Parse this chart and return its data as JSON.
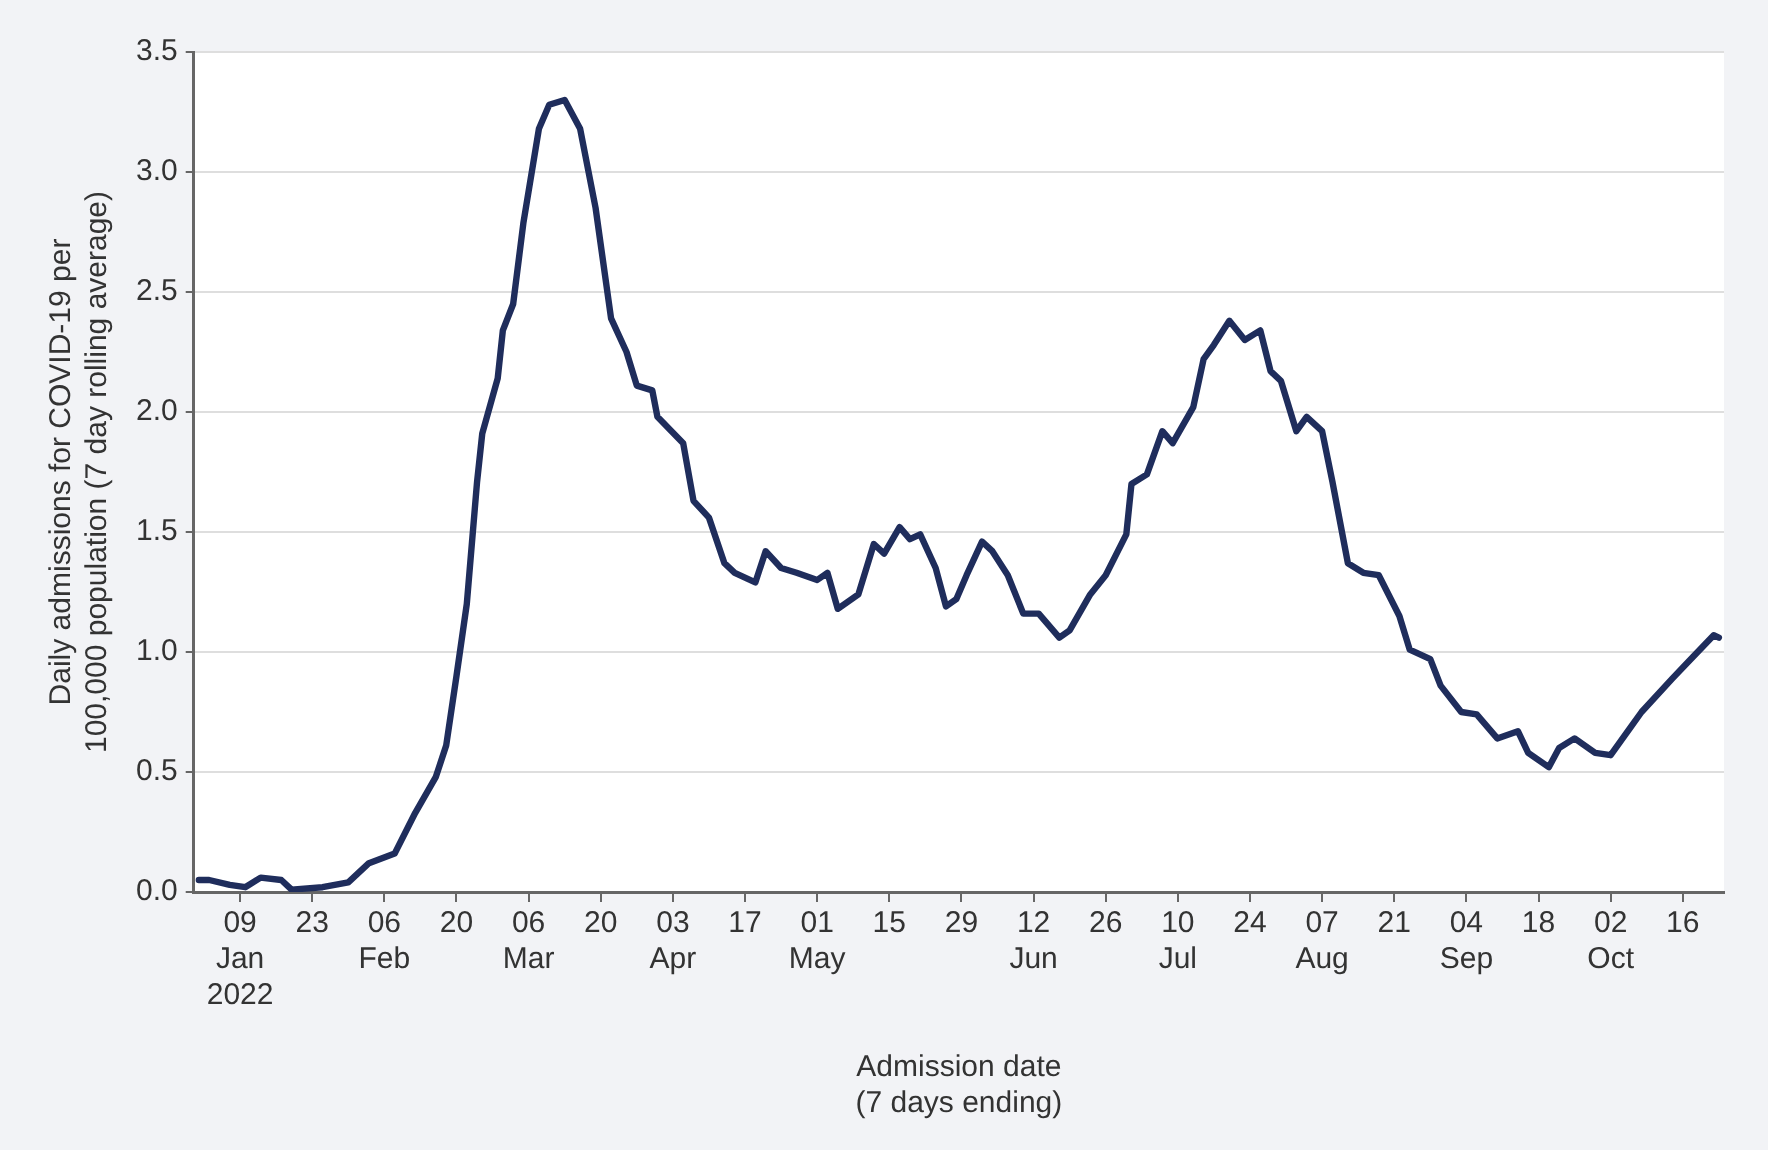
{
  "chart_data": {
    "type": "line",
    "xlabel": "Admission date\n(7 days ending)",
    "ylabel": "Daily admissions for COVID-19 per\n100,000 population (7 day rolling average)",
    "xlim": [
      "2021-12-31",
      "2022-10-24"
    ],
    "xticks": [
      {
        "value": "2022-01-09",
        "label": "09\nJan\n2022"
      },
      {
        "value": "2022-01-23",
        "label": "23"
      },
      {
        "value": "2022-02-06",
        "label": "06\nFeb"
      },
      {
        "value": "2022-02-20",
        "label": "20"
      },
      {
        "value": "2022-03-06",
        "label": "06\nMar"
      },
      {
        "value": "2022-03-20",
        "label": "20"
      },
      {
        "value": "2022-04-03",
        "label": "03\nApr"
      },
      {
        "value": "2022-04-17",
        "label": "17"
      },
      {
        "value": "2022-05-01",
        "label": "01\nMay"
      },
      {
        "value": "2022-05-15",
        "label": "15"
      },
      {
        "value": "2022-05-29",
        "label": "29"
      },
      {
        "value": "2022-06-12",
        "label": "12\nJun"
      },
      {
        "value": "2022-06-26",
        "label": "26"
      },
      {
        "value": "2022-07-10",
        "label": "10\nJul"
      },
      {
        "value": "2022-07-24",
        "label": "24"
      },
      {
        "value": "2022-08-07",
        "label": "07\nAug"
      },
      {
        "value": "2022-08-21",
        "label": "21"
      },
      {
        "value": "2022-09-04",
        "label": "04\nSep"
      },
      {
        "value": "2022-09-18",
        "label": "18"
      },
      {
        "value": "2022-10-02",
        "label": "02\nOct"
      },
      {
        "value": "2022-10-16",
        "label": "16"
      }
    ],
    "ylim": [
      0,
      3.5
    ],
    "yticks": [
      {
        "value": 0,
        "label": "0.0"
      },
      {
        "value": 0.5,
        "label": "0.5"
      },
      {
        "value": 1,
        "label": "1.0"
      },
      {
        "value": 1.5,
        "label": "1.5"
      },
      {
        "value": 2,
        "label": "2.0"
      },
      {
        "value": 2.5,
        "label": "2.5"
      },
      {
        "value": 3,
        "label": "3.0"
      },
      {
        "value": 3.5,
        "label": "3.5"
      }
    ],
    "grid": "y",
    "marker": "none",
    "line_style": "solid",
    "series": [
      {
        "color": "#1f2d5c",
        "x": [
          "2022-01-01",
          "2022-01-03",
          "2022-01-07",
          "2022-01-10",
          "2022-01-13",
          "2022-01-17",
          "2022-01-19",
          "2022-01-25",
          "2022-01-30",
          "2022-02-03",
          "2022-02-08",
          "2022-02-12",
          "2022-02-16",
          "2022-02-18",
          "2022-02-20",
          "2022-02-22",
          "2022-02-24",
          "2022-02-25",
          "2022-02-28",
          "2022-03-01",
          "2022-03-03",
          "2022-03-05",
          "2022-03-08",
          "2022-03-10",
          "2022-03-13",
          "2022-03-16",
          "2022-03-19",
          "2022-03-22",
          "2022-03-25",
          "2022-03-27",
          "2022-03-30",
          "2022-03-31",
          "2022-04-05",
          "2022-04-07",
          "2022-04-10",
          "2022-04-13",
          "2022-04-15",
          "2022-04-19",
          "2022-04-21",
          "2022-04-24",
          "2022-04-27",
          "2022-05-01",
          "2022-05-03",
          "2022-05-05",
          "2022-05-09",
          "2022-05-12",
          "2022-05-14",
          "2022-05-17",
          "2022-05-19",
          "2022-05-21",
          "2022-05-24",
          "2022-05-26",
          "2022-05-28",
          "2022-05-30",
          "2022-06-02",
          "2022-06-04",
          "2022-06-07",
          "2022-06-10",
          "2022-06-13",
          "2022-06-17",
          "2022-06-19",
          "2022-06-23",
          "2022-06-26",
          "2022-06-30",
          "2022-07-01",
          "2022-07-04",
          "2022-07-07",
          "2022-07-09",
          "2022-07-13",
          "2022-07-15",
          "2022-07-17",
          "2022-07-20",
          "2022-07-23",
          "2022-07-26",
          "2022-07-28",
          "2022-07-30",
          "2022-08-02",
          "2022-08-04",
          "2022-08-07",
          "2022-08-09",
          "2022-08-12",
          "2022-08-15",
          "2022-08-18",
          "2022-08-22",
          "2022-08-24",
          "2022-08-28",
          "2022-08-30",
          "2022-09-03",
          "2022-09-06",
          "2022-09-10",
          "2022-09-14",
          "2022-09-16",
          "2022-09-20",
          "2022-09-22",
          "2022-09-25",
          "2022-09-29",
          "2022-10-02",
          "2022-10-06",
          "2022-10-08",
          "2022-10-14",
          "2022-10-18",
          "2022-10-22",
          "2022-10-23"
        ],
        "values": [
          0.05,
          0.05,
          0.03,
          0.02,
          0.06,
          0.05,
          0.01,
          0.02,
          0.04,
          0.12,
          0.16,
          0.33,
          0.48,
          0.61,
          0.9,
          1.2,
          1.71,
          1.91,
          2.14,
          2.34,
          2.45,
          2.79,
          3.18,
          3.28,
          3.3,
          3.18,
          2.85,
          2.39,
          2.25,
          2.11,
          2.09,
          1.98,
          1.87,
          1.63,
          1.56,
          1.37,
          1.33,
          1.29,
          1.42,
          1.35,
          1.33,
          1.3,
          1.33,
          1.18,
          1.24,
          1.45,
          1.41,
          1.52,
          1.47,
          1.49,
          1.35,
          1.19,
          1.22,
          1.32,
          1.46,
          1.42,
          1.32,
          1.16,
          1.16,
          1.06,
          1.09,
          1.24,
          1.32,
          1.49,
          1.7,
          1.74,
          1.92,
          1.87,
          2.02,
          2.22,
          2.28,
          2.38,
          2.3,
          2.34,
          2.17,
          2.13,
          1.92,
          1.98,
          1.92,
          1.71,
          1.37,
          1.33,
          1.32,
          1.15,
          1.01,
          0.97,
          0.86,
          0.75,
          0.74,
          0.64,
          0.67,
          0.58,
          0.52,
          0.6,
          0.64,
          0.58,
          0.57,
          0.69,
          0.75,
          0.89,
          0.98,
          1.07,
          1.06
        ]
      }
    ]
  }
}
